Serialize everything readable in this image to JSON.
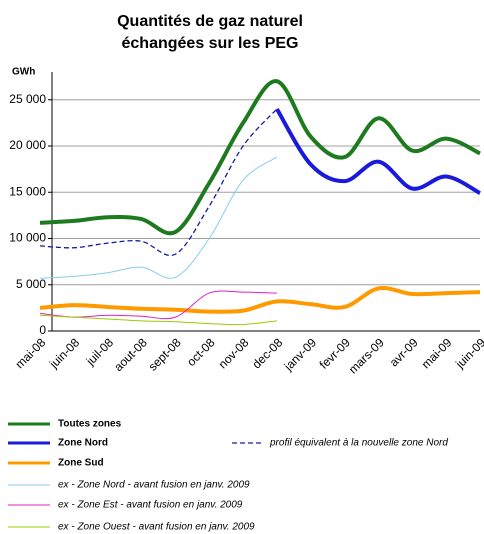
{
  "chart_data": {
    "type": "line",
    "title": [
      "Quantités de gaz naturel",
      "échangées sur les PEG"
    ],
    "y_label": "GWh",
    "categories": [
      "mai-08",
      "juin-08",
      "juil-08",
      "aout-08",
      "sept-08",
      "oct-08",
      "nov-08",
      "dec-08",
      "janv-09",
      "fevr-09",
      "mars-09",
      "avr-09",
      "mai-09",
      "juin-09"
    ],
    "ylim": [
      0,
      28000
    ],
    "yticks": [
      0,
      {
        "value": 5000,
        "label": "5 000"
      },
      {
        "value": 10000,
        "label": "10 000"
      },
      {
        "value": 15000,
        "label": "15 000"
      },
      {
        "value": 20000,
        "label": "20 000"
      },
      {
        "value": 25000,
        "label": "25 000"
      }
    ],
    "grid": true,
    "series": [
      {
        "name": "Toutes zones",
        "color": "#1e7a1e",
        "line_width": 4,
        "dashed": false,
        "values": [
          11700,
          11900,
          12300,
          12100,
          10700,
          16000,
          22500,
          27000,
          21000,
          18800,
          23000,
          19500,
          20800,
          19200
        ]
      },
      {
        "name": "Zone Nord",
        "color": "#1a1adc",
        "line_width": 4,
        "dashed": false,
        "values": [
          null,
          null,
          null,
          null,
          null,
          null,
          null,
          24000,
          18000,
          16200,
          18300,
          15400,
          16700,
          14900
        ]
      },
      {
        "name": "profil équivalent à la nouvelle zone Nord",
        "color": "#1a1aa0",
        "line_width": 1.3,
        "dashed": true,
        "values": [
          9200,
          9000,
          9500,
          9700,
          8300,
          13500,
          20000,
          24000,
          null,
          null,
          null,
          null,
          null,
          null
        ]
      },
      {
        "name": "Zone Sud",
        "color": "#ff9900",
        "line_width": 4,
        "dashed": false,
        "values": [
          2500,
          2800,
          2600,
          2400,
          2300,
          2100,
          2200,
          3200,
          2900,
          2600,
          4600,
          4000,
          4100,
          4200
        ]
      },
      {
        "name": "ex - Zone Nord - avant fusion en janv. 2009",
        "color": "#88ccee",
        "line_width": 1,
        "dashed": false,
        "values": [
          5700,
          5900,
          6300,
          6900,
          5800,
          10000,
          16300,
          18800,
          null,
          null,
          null,
          null,
          null,
          null
        ]
      },
      {
        "name": "ex - Zone Est - avant fusion en janv. 2009",
        "color": "#e020c0",
        "line_width": 1,
        "dashed": false,
        "values": [
          1900,
          1500,
          1700,
          1600,
          1500,
          4100,
          4200,
          4100,
          null,
          null,
          null,
          null,
          null,
          null
        ]
      },
      {
        "name": "ex - Zone Ouest - avant fusion en janv. 2009",
        "color": "#99cc00",
        "line_width": 1,
        "dashed": false,
        "values": [
          1700,
          1500,
          1300,
          1100,
          1000,
          800,
          700,
          1100,
          null,
          null,
          null,
          null,
          null,
          null
        ]
      }
    ]
  }
}
